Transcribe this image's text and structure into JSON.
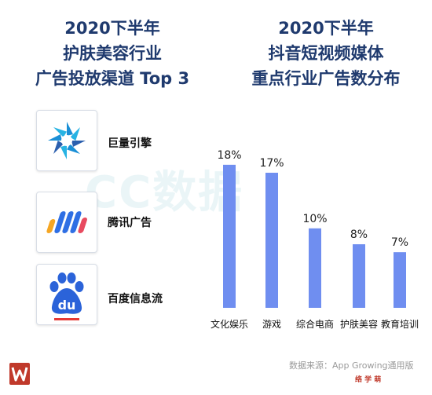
{
  "left_title": {
    "lines": [
      "2020下半年",
      "护肤美容行业",
      "广告投放渠道 Top 3"
    ]
  },
  "right_title": {
    "lines": [
      "2020下半年",
      "抖音短视频媒体",
      "重点行业广告数分布"
    ]
  },
  "channels": [
    {
      "name": "巨量引擎",
      "icon": "juliang-engine-logo"
    },
    {
      "name": "腾讯广告",
      "icon": "tencent-ads-logo"
    },
    {
      "name": "百度信息流",
      "icon": "baidu-feed-logo"
    }
  ],
  "watermark": "CC数据",
  "chart_data": {
    "type": "bar",
    "title": "",
    "categories": [
      "文化娱乐",
      "游戏",
      "综合电商",
      "护肤美容",
      "教育培训"
    ],
    "values": [
      18,
      17,
      10,
      8,
      7
    ],
    "data_labels": [
      "18%",
      "17%",
      "10%",
      "8%",
      "7%"
    ],
    "unit": "%",
    "ylim": [
      0,
      20
    ],
    "grid": false,
    "color": "#6f8ef0"
  },
  "source": "数据来源：App Growing通用版",
  "footer_stamp": "络 学 萌",
  "colors": {
    "title": "#1f3a6e",
    "bar": "#6f8ef0",
    "brand": "#c0392b"
  }
}
